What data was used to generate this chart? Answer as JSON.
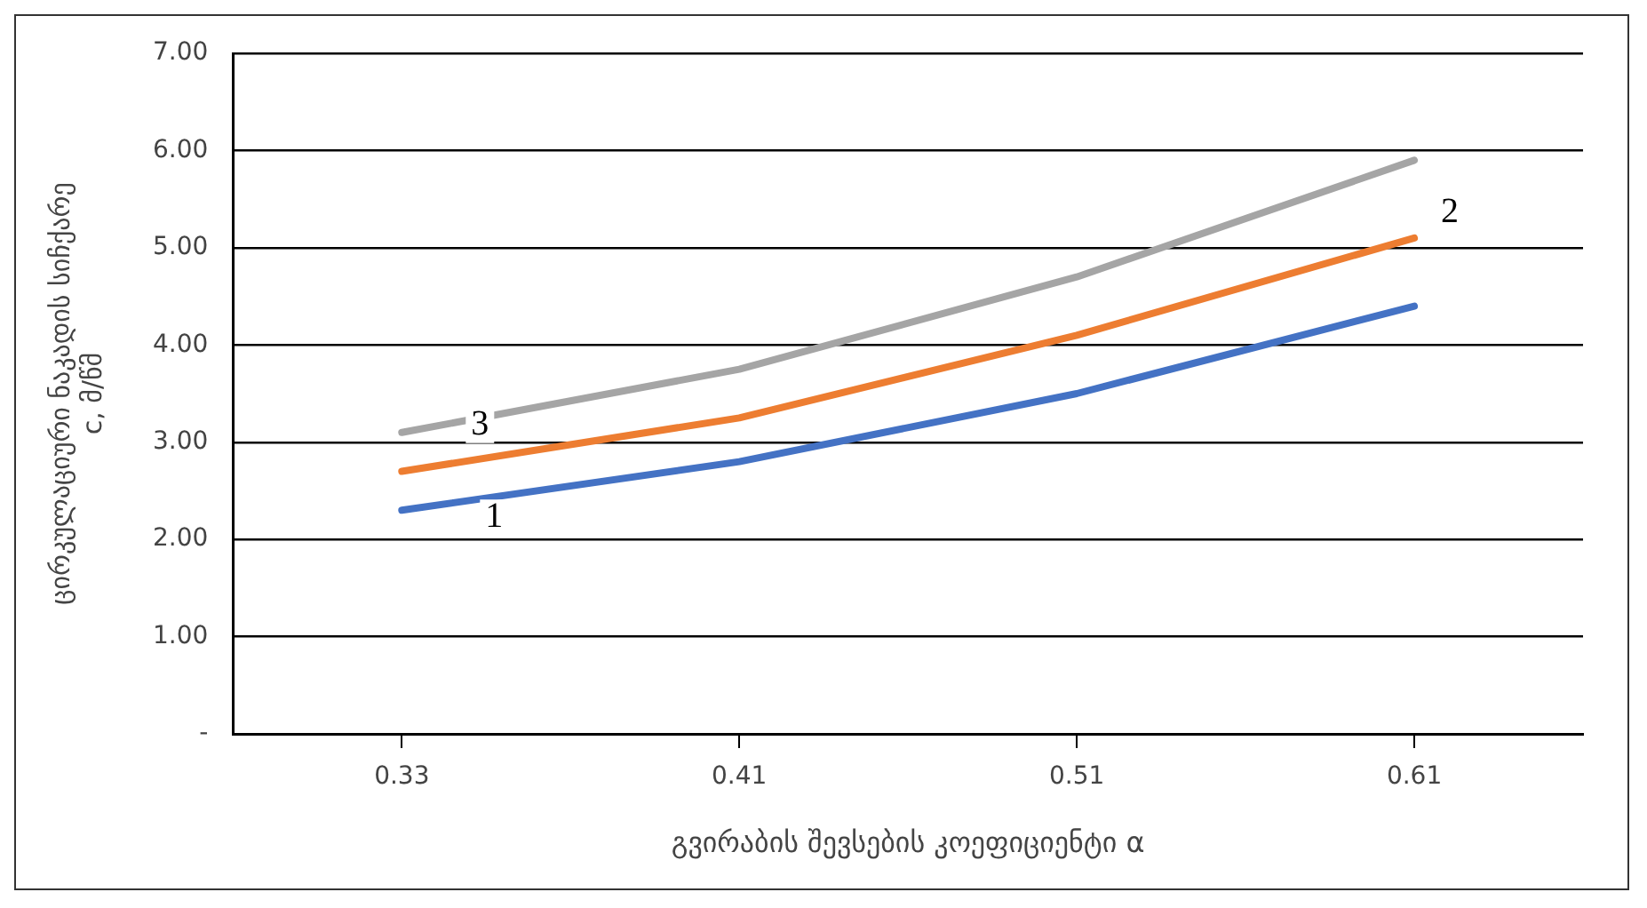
{
  "chart_data": {
    "type": "line",
    "xlabel": "გვირაბის შევსების კოეფიციენტი α",
    "ylabel": "ცირკულაციური ნაკადის სიჩქარე\nc, მ/წმ",
    "categories": [
      "0.33",
      "0.41",
      "0.51",
      "0.61"
    ],
    "series": [
      {
        "color": "#4472c4",
        "values": [
          2.3,
          2.8,
          3.5,
          4.4
        ]
      },
      {
        "color": "#ed7d31",
        "values": [
          2.7,
          3.25,
          4.1,
          5.1
        ]
      },
      {
        "color": "#a5a5a5",
        "values": [
          3.1,
          3.75,
          4.7,
          5.9
        ]
      }
    ],
    "ylim": [
      0,
      7
    ],
    "yticks": [
      {
        "value": 0,
        "label": "-"
      },
      {
        "value": 1,
        "label": "1.00"
      },
      {
        "value": 2,
        "label": "2.00"
      },
      {
        "value": 3,
        "label": "3.00"
      },
      {
        "value": 4,
        "label": "4.00"
      },
      {
        "value": 5,
        "label": "5.00"
      },
      {
        "value": 6,
        "label": "6.00"
      },
      {
        "value": 7,
        "label": "7.00"
      }
    ],
    "grid": "y",
    "legend": false,
    "marker": "none",
    "line_style": "solid",
    "annotations": [
      {
        "text": "1",
        "x": "0.33",
        "y": 2.3
      },
      {
        "text": "2",
        "x": "0.61",
        "y": 5.1
      },
      {
        "text": "3",
        "x": "0.33",
        "y": 3.1
      }
    ]
  }
}
